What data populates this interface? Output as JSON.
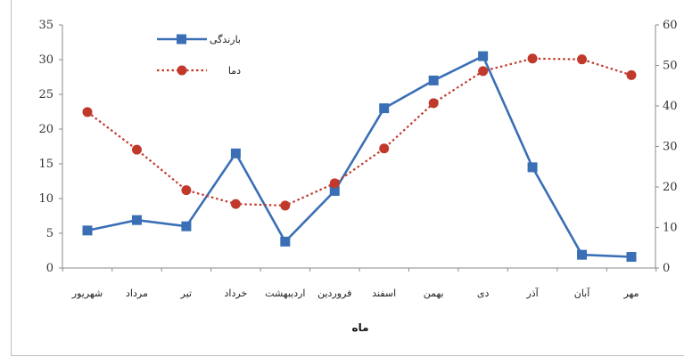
{
  "chart_data": {
    "type": "line",
    "title": "",
    "xlabel": "ماه",
    "categories": [
      "شهریور",
      "مرداد",
      "تیر",
      "خرداد",
      "اردیبهشت",
      "فروردین",
      "اسفند",
      "بهمن",
      "دی",
      "آذر",
      "آبان",
      "مهر"
    ],
    "y_left": {
      "ylim": [
        0,
        35
      ],
      "ticks": [
        "0",
        "5",
        "10",
        "15",
        "20",
        "25",
        "30",
        "35"
      ]
    },
    "y_right": {
      "ylim": [
        0,
        60
      ],
      "ticks": [
        "0",
        "10",
        "20",
        "30",
        "40",
        "50",
        "60"
      ]
    },
    "series": [
      {
        "name": "بارندگی",
        "axis": "left",
        "color": "#3a6fb5",
        "marker": "square",
        "line_style": "solid",
        "values": [
          5.4,
          6.9,
          6.0,
          16.5,
          3.8,
          11.1,
          23.0,
          27.0,
          30.5,
          14.5,
          1.9,
          1.6
        ]
      },
      {
        "name": "دما",
        "axis": "right",
        "color": "#c0392b",
        "marker": "circle",
        "line_style": "dotted",
        "values": [
          38.5,
          29.2,
          19.2,
          15.8,
          15.4,
          20.9,
          29.5,
          40.7,
          48.6,
          51.7,
          51.5,
          47.6
        ]
      }
    ],
    "legend_position": "top-left",
    "grid": false
  }
}
